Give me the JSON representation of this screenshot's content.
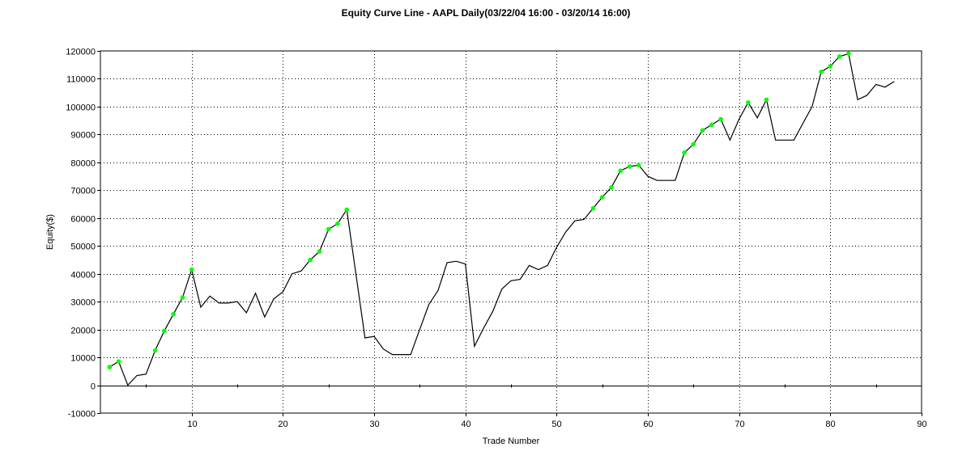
{
  "chart_data": {
    "type": "line",
    "title": "Equity Curve Line - AAPL Daily(03/22/04 16:00 - 03/20/14 16:00)",
    "xlabel": "Trade Number",
    "ylabel": "Equity($)",
    "xlim": [
      0,
      90
    ],
    "ylim": [
      -10000,
      120000
    ],
    "xticks": [
      10,
      20,
      30,
      40,
      50,
      60,
      70,
      80,
      90
    ],
    "yticks": [
      -10000,
      0,
      10000,
      20000,
      30000,
      40000,
      50000,
      60000,
      70000,
      80000,
      90000,
      100000,
      110000,
      120000
    ],
    "grid": true,
    "line_color": "#000000",
    "marker_color": "#00ff00",
    "series": [
      {
        "x": [
          1,
          2,
          3,
          4,
          5,
          6,
          7,
          8,
          9,
          10,
          11,
          12,
          13,
          14,
          15,
          16,
          17,
          18,
          19,
          20,
          21,
          22,
          23,
          24,
          25,
          26,
          27,
          28,
          29,
          30,
          31,
          32,
          33,
          34,
          35,
          36,
          37,
          38,
          39,
          40,
          41,
          42,
          43,
          44,
          45,
          46,
          47,
          48,
          49,
          50,
          51,
          52,
          53,
          54,
          55,
          56,
          57,
          58,
          59,
          60,
          61,
          62,
          63,
          64,
          65,
          66,
          67,
          68,
          69,
          70,
          71,
          72,
          73,
          74,
          75,
          76,
          77,
          78,
          79,
          80,
          81,
          82,
          83,
          84,
          85,
          86,
          87
        ],
        "y": [
          6500,
          8500,
          0,
          3500,
          4000,
          12500,
          19500,
          25500,
          31500,
          41500,
          28000,
          32000,
          29500,
          29500,
          30000,
          26000,
          33000,
          24500,
          31000,
          33500,
          40000,
          41000,
          45000,
          48000,
          56000,
          58000,
          63000,
          40000,
          17000,
          17500,
          13000,
          11000,
          11000,
          11000,
          20000,
          29000,
          34000,
          44000,
          44500,
          43500,
          14000,
          20500,
          26500,
          34500,
          37500,
          38000,
          43000,
          41500,
          43000,
          49500,
          55000,
          59000,
          59500,
          63500,
          67500,
          71000,
          77000,
          78500,
          79000,
          75000,
          73500,
          73500,
          73500,
          83500,
          86500,
          91500,
          93500,
          95500,
          88000,
          95500,
          101500,
          96000,
          102500,
          88000,
          88000,
          88000,
          94000,
          100000,
          112500,
          114500,
          118000,
          119000,
          102500,
          104000,
          108000,
          107000,
          109000
        ]
      }
    ],
    "markers_x": [
      1,
      2,
      6,
      7,
      8,
      9,
      10,
      23,
      24,
      25,
      26,
      27,
      54,
      55,
      56,
      57,
      58,
      59,
      64,
      65,
      66,
      67,
      68,
      71,
      73,
      79,
      80,
      81,
      82
    ]
  }
}
